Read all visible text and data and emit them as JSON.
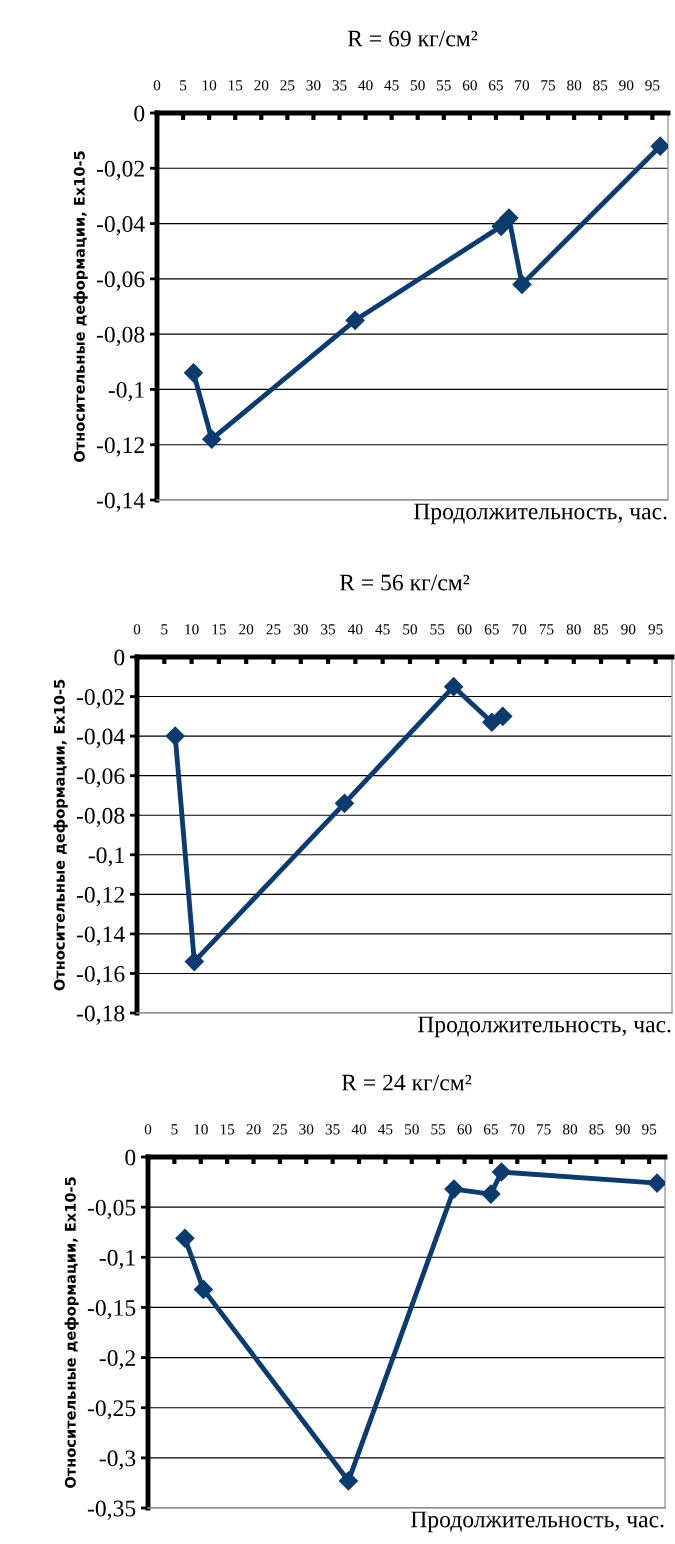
{
  "chart_data": [
    {
      "type": "line",
      "title": "R = 69 кг/см²",
      "xlabel": "Продолжительность, час.",
      "ylabel": "Относительные деформации, Ex10-5",
      "x": [
        7,
        10.5,
        38,
        66,
        67.5,
        70,
        96.5
      ],
      "series": [
        {
          "color": "#0d3b6e",
          "values": [
            -0.094,
            -0.118,
            -0.075,
            -0.041,
            -0.038,
            -0.062,
            -0.012
          ]
        }
      ],
      "xlim": [
        0,
        98
      ],
      "xticks": [
        0,
        5,
        10,
        15,
        20,
        25,
        30,
        35,
        40,
        45,
        50,
        55,
        60,
        65,
        70,
        75,
        80,
        85,
        90,
        95
      ],
      "ylim": [
        -0.14,
        0
      ],
      "yticks": [
        {
          "value": 0,
          "label": "0"
        },
        {
          "value": -0.02,
          "label": "-0,02"
        },
        {
          "value": -0.04,
          "label": "-0,04"
        },
        {
          "value": -0.06,
          "label": "-0,06"
        },
        {
          "value": -0.08,
          "label": "-0,08"
        },
        {
          "value": -0.1,
          "label": "-0,1"
        },
        {
          "value": -0.12,
          "label": "-0,12"
        },
        {
          "value": -0.14,
          "label": "-0,14"
        }
      ],
      "grid": "y",
      "marker": "diamond",
      "line_style": "solid"
    },
    {
      "type": "line",
      "title": "R = 56 кг/см²",
      "xlabel": "Продолжительность, час.",
      "ylabel": "Относительные деформации, Ex10-5",
      "x": [
        7,
        10.5,
        38,
        58,
        65,
        67
      ],
      "series": [
        {
          "color": "#0d3b6e",
          "values": [
            -0.04,
            -0.154,
            -0.074,
            -0.015,
            -0.033,
            -0.03
          ]
        }
      ],
      "xlim": [
        0,
        98
      ],
      "xticks": [
        0,
        5,
        10,
        15,
        20,
        25,
        30,
        35,
        40,
        45,
        50,
        55,
        60,
        65,
        70,
        75,
        80,
        85,
        90,
        95
      ],
      "ylim": [
        -0.18,
        0
      ],
      "yticks": [
        {
          "value": 0,
          "label": "0"
        },
        {
          "value": -0.02,
          "label": "-0,02"
        },
        {
          "value": -0.04,
          "label": "-0,04"
        },
        {
          "value": -0.06,
          "label": "-0,06"
        },
        {
          "value": -0.08,
          "label": "-0,08"
        },
        {
          "value": -0.1,
          "label": "-0,1"
        },
        {
          "value": -0.12,
          "label": "-0,12"
        },
        {
          "value": -0.14,
          "label": "-0,14"
        },
        {
          "value": -0.16,
          "label": "-0,16"
        },
        {
          "value": -0.18,
          "label": "-0,18"
        }
      ],
      "grid": "y",
      "marker": "diamond",
      "line_style": "solid"
    },
    {
      "type": "line",
      "title": "R = 24 кг/см²",
      "xlabel": "Продолжительность, час.",
      "ylabel": "Относительные деформации, Ex10-5",
      "x": [
        7,
        10.5,
        38,
        58,
        65,
        67,
        96.5
      ],
      "series": [
        {
          "color": "#0d3b6e",
          "values": [
            -0.081,
            -0.132,
            -0.323,
            -0.032,
            -0.037,
            -0.015,
            -0.026
          ]
        }
      ],
      "xlim": [
        0,
        98
      ],
      "xticks": [
        0,
        5,
        10,
        15,
        20,
        25,
        30,
        35,
        40,
        45,
        50,
        55,
        60,
        65,
        70,
        75,
        80,
        85,
        90,
        95
      ],
      "ylim": [
        -0.35,
        0
      ],
      "yticks": [
        {
          "value": 0,
          "label": "0"
        },
        {
          "value": -0.05,
          "label": "-0,05"
        },
        {
          "value": -0.1,
          "label": "-0,1"
        },
        {
          "value": -0.15,
          "label": "-0,15"
        },
        {
          "value": -0.2,
          "label": "-0,2"
        },
        {
          "value": -0.25,
          "label": "-0,25"
        },
        {
          "value": -0.3,
          "label": "-0,3"
        },
        {
          "value": -0.35,
          "label": "-0,35"
        }
      ],
      "grid": "y",
      "marker": "diamond",
      "line_style": "solid"
    }
  ]
}
